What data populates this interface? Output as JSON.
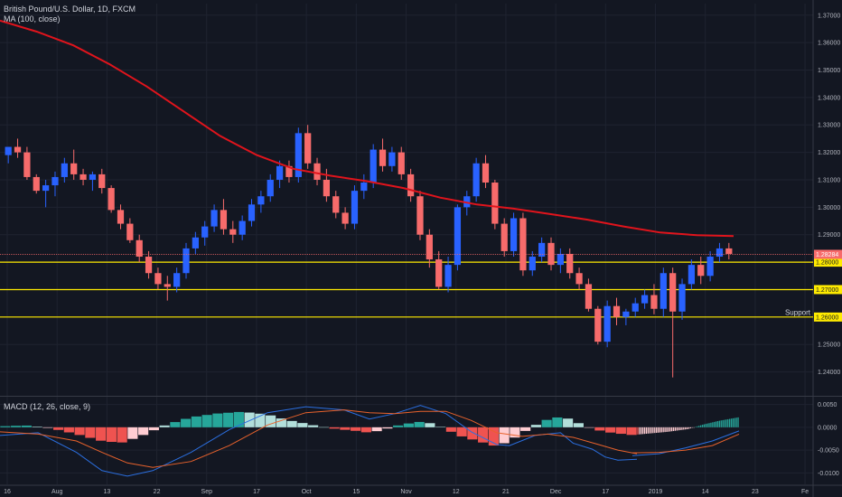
{
  "header": {
    "symbol_line": "British Pound/U.S. Dollar, 1D, FXCM",
    "ma_line": "MA (100, close)",
    "macd_line": "MACD (12, 26, close, 9)"
  },
  "colors": {
    "background": "#131722",
    "bull": "#2962ff",
    "bear": "#f76b6b",
    "ma": "#e0141c",
    "level": "#ffeb00",
    "macd_line": "#2b6fe0",
    "signal_line": "#e8622c",
    "hist_pos_strong": "#26a69a",
    "hist_pos_weak": "#b2dfdb",
    "hist_neg_strong": "#ef5350",
    "hist_neg_weak": "#ffcdd2",
    "grid": "#1f2330",
    "text": "#b2b5be"
  },
  "chart_data": [
    {
      "type": "candlestick",
      "title": "British Pound/U.S. Dollar, 1D, FXCM",
      "x_ticks": [
        "16",
        "Aug",
        "13",
        "22",
        "Sep",
        "17",
        "Oct",
        "15",
        "Nov",
        "12",
        "21",
        "Dec",
        "17",
        "2019",
        "14",
        "23",
        "Fe"
      ],
      "y_ticks": [
        "1.37000",
        "1.36000",
        "1.35000",
        "1.34000",
        "1.33000",
        "1.32000",
        "1.31000",
        "1.30000",
        "1.29000",
        "1.28000",
        "1.27000",
        "1.26000",
        "1.25000",
        "1.24000"
      ],
      "ylim": [
        1.2313,
        1.3742
      ],
      "last_price": "1.28284",
      "level_lines": [
        {
          "value": 1.28,
          "label": "1.28000",
          "text": ""
        },
        {
          "value": 1.27,
          "label": "1.27000",
          "text": ""
        },
        {
          "value": 1.26,
          "label": "1.26000",
          "text": "Support"
        }
      ],
      "anchors_ohlc": [
        [
          1.319,
          1.322,
          1.316,
          1.322
        ],
        [
          1.322,
          1.325,
          1.318,
          1.32
        ],
        [
          1.32,
          1.322,
          1.31,
          1.311
        ],
        [
          1.311,
          1.312,
          1.305,
          1.306
        ],
        [
          1.306,
          1.31,
          1.3,
          1.308
        ],
        [
          1.308,
          1.313,
          1.304,
          1.311
        ],
        [
          1.311,
          1.318,
          1.309,
          1.316
        ],
        [
          1.316,
          1.321,
          1.31,
          1.312
        ],
        [
          1.312,
          1.314,
          1.308,
          1.31
        ],
        [
          1.31,
          1.313,
          1.306,
          1.312
        ],
        [
          1.312,
          1.314,
          1.305,
          1.307
        ],
        [
          1.307,
          1.308,
          1.298,
          1.299
        ],
        [
          1.299,
          1.301,
          1.292,
          1.294
        ],
        [
          1.294,
          1.296,
          1.287,
          1.288
        ],
        [
          1.288,
          1.29,
          1.28,
          1.282
        ],
        [
          1.282,
          1.284,
          1.274,
          1.276
        ],
        [
          1.276,
          1.278,
          1.27,
          1.272
        ],
        [
          1.272,
          1.275,
          1.266,
          1.271
        ],
        [
          1.271,
          1.278,
          1.269,
          1.276
        ],
        [
          1.276,
          1.287,
          1.274,
          1.285
        ],
        [
          1.285,
          1.291,
          1.283,
          1.289
        ],
        [
          1.289,
          1.295,
          1.286,
          1.293
        ],
        [
          1.293,
          1.301,
          1.291,
          1.299
        ],
        [
          1.299,
          1.303,
          1.29,
          1.292
        ],
        [
          1.292,
          1.295,
          1.287,
          1.29
        ],
        [
          1.29,
          1.297,
          1.288,
          1.295
        ],
        [
          1.295,
          1.303,
          1.293,
          1.301
        ],
        [
          1.301,
          1.306,
          1.298,
          1.304
        ],
        [
          1.304,
          1.312,
          1.302,
          1.31
        ],
        [
          1.31,
          1.317,
          1.307,
          1.315
        ],
        [
          1.315,
          1.317,
          1.309,
          1.311
        ],
        [
          1.311,
          1.329,
          1.309,
          1.327
        ],
        [
          1.327,
          1.33,
          1.314,
          1.316
        ],
        [
          1.316,
          1.318,
          1.308,
          1.31
        ],
        [
          1.31,
          1.314,
          1.302,
          1.304
        ],
        [
          1.304,
          1.306,
          1.296,
          1.298
        ],
        [
          1.298,
          1.3,
          1.292,
          1.294
        ],
        [
          1.294,
          1.308,
          1.292,
          1.306
        ],
        [
          1.306,
          1.312,
          1.303,
          1.309
        ],
        [
          1.309,
          1.323,
          1.307,
          1.321
        ],
        [
          1.321,
          1.325,
          1.313,
          1.315
        ],
        [
          1.315,
          1.322,
          1.313,
          1.32
        ],
        [
          1.32,
          1.322,
          1.31,
          1.312
        ],
        [
          1.312,
          1.314,
          1.302,
          1.304
        ],
        [
          1.304,
          1.306,
          1.288,
          1.29
        ],
        [
          1.29,
          1.292,
          1.278,
          1.281
        ],
        [
          1.281,
          1.284,
          1.27,
          1.271
        ],
        [
          1.271,
          1.282,
          1.269,
          1.279
        ],
        [
          1.279,
          1.301,
          1.277,
          1.3
        ],
        [
          1.3,
          1.306,
          1.297,
          1.304
        ],
        [
          1.304,
          1.318,
          1.302,
          1.316
        ],
        [
          1.316,
          1.319,
          1.307,
          1.309
        ],
        [
          1.309,
          1.31,
          1.292,
          1.294
        ],
        [
          1.294,
          1.296,
          1.282,
          1.284
        ],
        [
          1.284,
          1.298,
          1.282,
          1.296
        ],
        [
          1.296,
          1.298,
          1.275,
          1.277
        ],
        [
          1.277,
          1.284,
          1.275,
          1.282
        ],
        [
          1.282,
          1.289,
          1.28,
          1.287
        ],
        [
          1.287,
          1.289,
          1.277,
          1.279
        ],
        [
          1.279,
          1.285,
          1.276,
          1.283
        ],
        [
          1.283,
          1.285,
          1.274,
          1.276
        ],
        [
          1.276,
          1.278,
          1.27,
          1.272
        ],
        [
          1.272,
          1.274,
          1.262,
          1.263
        ],
        [
          1.263,
          1.264,
          1.25,
          1.251
        ],
        [
          1.251,
          1.266,
          1.249,
          1.264
        ],
        [
          1.264,
          1.267,
          1.257,
          1.26
        ],
        [
          1.26,
          1.263,
          1.257,
          1.262
        ],
        [
          1.262,
          1.267,
          1.26,
          1.265
        ],
        [
          1.265,
          1.27,
          1.263,
          1.268
        ],
        [
          1.268,
          1.272,
          1.261,
          1.263
        ],
        [
          1.263,
          1.278,
          1.26,
          1.276
        ],
        [
          1.276,
          1.278,
          1.238,
          1.262
        ],
        [
          1.262,
          1.274,
          1.259,
          1.272
        ],
        [
          1.272,
          1.281,
          1.27,
          1.279
        ],
        [
          1.279,
          1.282,
          1.272,
          1.275
        ],
        [
          1.275,
          1.284,
          1.273,
          1.282
        ],
        [
          1.282,
          1.287,
          1.28,
          1.285
        ],
        [
          1.285,
          1.287,
          1.281,
          1.283
        ]
      ],
      "ma100": [
        [
          0,
          1.368
        ],
        [
          0.05,
          1.364
        ],
        [
          0.1,
          1.359
        ],
        [
          0.15,
          1.352
        ],
        [
          0.2,
          1.344
        ],
        [
          0.25,
          1.335
        ],
        [
          0.3,
          1.326
        ],
        [
          0.35,
          1.319
        ],
        [
          0.4,
          1.314
        ],
        [
          0.45,
          1.3115
        ],
        [
          0.5,
          1.3095
        ],
        [
          0.55,
          1.307
        ],
        [
          0.6,
          1.3035
        ],
        [
          0.65,
          1.301
        ],
        [
          0.7,
          1.2995
        ],
        [
          0.75,
          1.2975
        ],
        [
          0.8,
          1.2955
        ],
        [
          0.85,
          1.293
        ],
        [
          0.9,
          1.2908
        ],
        [
          0.95,
          1.2898
        ],
        [
          1.0,
          1.2895
        ]
      ]
    },
    {
      "type": "macd",
      "title": "MACD (12, 26, close, 9)",
      "y_ticks": [
        "0.0050",
        "0.0000",
        "-0.0050",
        "-0.0100"
      ],
      "ylim": [
        -0.0125,
        0.0065
      ],
      "macd": [
        [
          0,
          -0.0018
        ],
        [
          0.06,
          -0.0012
        ],
        [
          0.12,
          -0.0055
        ],
        [
          0.16,
          -0.0095
        ],
        [
          0.2,
          -0.0107
        ],
        [
          0.24,
          -0.0095
        ],
        [
          0.3,
          -0.0055
        ],
        [
          0.36,
          -0.0005
        ],
        [
          0.42,
          0.0032
        ],
        [
          0.48,
          0.0045
        ],
        [
          0.54,
          0.0038
        ],
        [
          0.58,
          0.0018
        ],
        [
          0.62,
          0.003
        ],
        [
          0.66,
          0.0048
        ],
        [
          0.7,
          0.003
        ],
        [
          0.74,
          -0.001
        ],
        [
          0.78,
          -0.0038
        ],
        [
          0.8,
          -0.004
        ],
        [
          0.84,
          -0.0018
        ],
        [
          0.88,
          -0.0012
        ],
        [
          0.9,
          -0.0035
        ],
        [
          0.93,
          -0.0048
        ],
        [
          0.95,
          -0.0065
        ],
        [
          0.97,
          -0.0072
        ],
        [
          1.0,
          -0.007
        ]
      ],
      "signal": [
        [
          0,
          -0.001
        ],
        [
          0.06,
          -0.0015
        ],
        [
          0.12,
          -0.003
        ],
        [
          0.16,
          -0.0055
        ],
        [
          0.2,
          -0.0078
        ],
        [
          0.24,
          -0.0088
        ],
        [
          0.3,
          -0.0075
        ],
        [
          0.36,
          -0.004
        ],
        [
          0.42,
          0.0005
        ],
        [
          0.48,
          0.0032
        ],
        [
          0.54,
          0.0038
        ],
        [
          0.58,
          0.0032
        ],
        [
          0.62,
          0.003
        ],
        [
          0.66,
          0.0035
        ],
        [
          0.7,
          0.0035
        ],
        [
          0.74,
          0.0015
        ],
        [
          0.78,
          -0.0012
        ],
        [
          0.82,
          -0.002
        ],
        [
          0.86,
          -0.0015
        ],
        [
          0.9,
          -0.0022
        ],
        [
          0.94,
          -0.0038
        ],
        [
          0.97,
          -0.005
        ],
        [
          1.0,
          -0.0058
        ]
      ],
      "macd_tail": [
        [
          0,
          -0.0062
        ],
        [
          0.25,
          -0.0058
        ],
        [
          0.5,
          -0.0045
        ],
        [
          0.75,
          -0.003
        ],
        [
          1.0,
          -0.0008
        ]
      ],
      "signal_tail": [
        [
          0,
          -0.0056
        ],
        [
          0.25,
          -0.0055
        ],
        [
          0.5,
          -0.005
        ],
        [
          0.75,
          -0.004
        ],
        [
          1.0,
          -0.0015
        ]
      ],
      "hist": [
        [
          0,
          0.0002
        ],
        [
          0.04,
          0.0004
        ],
        [
          0.08,
          -0.0002
        ],
        [
          0.12,
          -0.0015
        ],
        [
          0.16,
          -0.003
        ],
        [
          0.19,
          -0.0034
        ],
        [
          0.22,
          -0.002
        ],
        [
          0.26,
          0.0005
        ],
        [
          0.3,
          0.0022
        ],
        [
          0.34,
          0.003
        ],
        [
          0.38,
          0.0034
        ],
        [
          0.42,
          0.0028
        ],
        [
          0.45,
          0.0016
        ],
        [
          0.48,
          0.0008
        ],
        [
          0.5,
          0.0002
        ],
        [
          0.53,
          -0.0004
        ],
        [
          0.56,
          -0.0008
        ],
        [
          0.58,
          -0.0012
        ],
        [
          0.6,
          -0.0006
        ],
        [
          0.63,
          0.0006
        ],
        [
          0.66,
          0.0012
        ],
        [
          0.68,
          0.0008
        ],
        [
          0.7,
          -0.0004
        ],
        [
          0.72,
          -0.0018
        ],
        [
          0.75,
          -0.003
        ],
        [
          0.78,
          -0.0042
        ],
        [
          0.8,
          -0.003
        ],
        [
          0.82,
          -0.0012
        ],
        [
          0.85,
          0.0012
        ],
        [
          0.87,
          0.0022
        ],
        [
          0.89,
          0.002
        ],
        [
          0.91,
          0.0008
        ],
        [
          0.93,
          -0.0004
        ],
        [
          0.96,
          -0.0012
        ],
        [
          1.0,
          -0.0018
        ]
      ],
      "hist_tail": [
        [
          0,
          -0.0016
        ],
        [
          0.3,
          -0.001
        ],
        [
          0.5,
          -0.0004
        ],
        [
          0.65,
          0.0006
        ],
        [
          0.8,
          0.0014
        ],
        [
          1.0,
          0.0022
        ]
      ]
    }
  ]
}
